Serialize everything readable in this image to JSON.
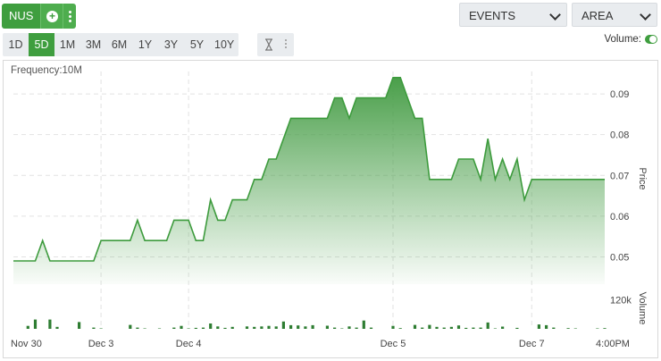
{
  "toolbar": {
    "ticker": "NUS",
    "add_icon": "plus-circle-icon",
    "more_icon": "vertical-ellipsis-icon",
    "events_dropdown": "EVENTS",
    "chart_type_dropdown": "AREA",
    "ranges": [
      "1D",
      "5D",
      "1M",
      "3M",
      "6M",
      "1Y",
      "3Y",
      "5Y",
      "10Y"
    ],
    "active_range": "5D",
    "tool_icon": "hourglass-icon",
    "volume_label": "Volume:",
    "volume_on": true
  },
  "chart_data": {
    "type": "area",
    "frequency_label": "Frequency:10M",
    "y_axis_title": "Price",
    "volume_axis_title": "Volume",
    "ylim": [
      0.0455,
      0.0955
    ],
    "y_ticks": [
      0.05,
      0.06,
      0.07,
      0.08,
      0.09
    ],
    "y_tick_labels": [
      "0.05",
      "0.06",
      "0.07",
      "0.08",
      "0.09"
    ],
    "volume_tick_label": "120k",
    "volume_tick_value": 120000,
    "x_labels": [
      "Nov 30",
      "Dec 3",
      "Dec 4",
      "Dec 5",
      "Dec 7",
      "4:00PM"
    ],
    "grid": true,
    "colors": {
      "line": "#3d9b3d",
      "fill_top": "#4a9f4a",
      "bar": "#2e7d32",
      "accent": "#3f9e3f"
    },
    "price": [
      0.049,
      0.049,
      0.049,
      0.049,
      0.054,
      0.049,
      0.049,
      0.049,
      0.049,
      0.049,
      0.049,
      0.049,
      0.054,
      0.054,
      0.054,
      0.054,
      0.054,
      0.059,
      0.054,
      0.054,
      0.054,
      0.054,
      0.059,
      0.059,
      0.059,
      0.054,
      0.054,
      0.064,
      0.059,
      0.059,
      0.064,
      0.064,
      0.064,
      0.069,
      0.069,
      0.074,
      0.074,
      0.079,
      0.084,
      0.084,
      0.084,
      0.084,
      0.084,
      0.084,
      0.089,
      0.089,
      0.084,
      0.089,
      0.089,
      0.089,
      0.089,
      0.089,
      0.094,
      0.094,
      0.089,
      0.084,
      0.084,
      0.069,
      0.069,
      0.069,
      0.069,
      0.074,
      0.074,
      0.074,
      0.069,
      0.079,
      0.069,
      0.074,
      0.069,
      0.074,
      0.064,
      0.069,
      0.069,
      0.069,
      0.069,
      0.069,
      0.069,
      0.069,
      0.069,
      0.069,
      0.069,
      0.069
    ],
    "volume": [
      0,
      0,
      12000,
      38000,
      0,
      38000,
      8000,
      0,
      0,
      28000,
      0,
      5000,
      2000,
      0,
      0,
      0,
      16000,
      5000,
      2000,
      0,
      2000,
      0,
      5000,
      12000,
      2000,
      4000,
      5000,
      22000,
      10000,
      4000,
      8000,
      0,
      10000,
      8000,
      10000,
      12000,
      10000,
      30000,
      15000,
      14000,
      10000,
      15000,
      0,
      13000,
      5000,
      2000,
      10000,
      5000,
      34000,
      5000,
      0,
      0,
      12000,
      3000,
      0,
      16000,
      5000,
      16000,
      8000,
      5000,
      8000,
      14000,
      4000,
      5000,
      5000,
      26000,
      2000,
      9000,
      0,
      4000,
      0,
      0,
      18000,
      15000,
      5000,
      0,
      3000,
      2000,
      0,
      0,
      2000,
      3000
    ]
  }
}
